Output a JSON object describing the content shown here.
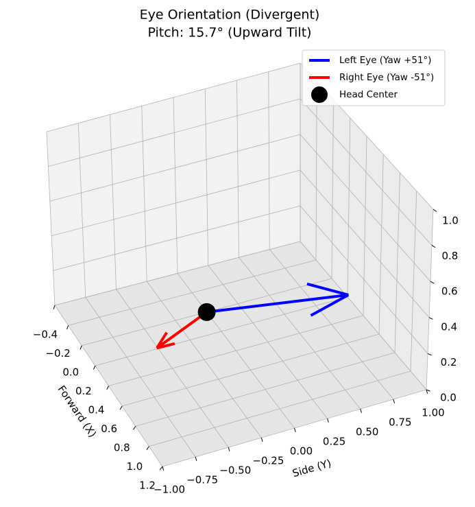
{
  "chart_data": {
    "type": "quiver3d",
    "title": "Eye Orientation (Divergent)",
    "subtitle": "Pitch: 15.7° (Upward Tilt)",
    "xlabel": "Forward (X)",
    "ylabel": "Side (Y)",
    "xlim": [
      -0.4,
      1.2
    ],
    "xticks": [
      {
        "value": -0.4,
        "label": "−0.4"
      },
      {
        "value": -0.2,
        "label": "−0.2"
      },
      {
        "value": 0,
        "label": "0.0"
      },
      0.2,
      0.4,
      0.6,
      0.8,
      {
        "value": 1,
        "label": "1.0"
      },
      1.2
    ],
    "ylim": [
      -1,
      1
    ],
    "yticks": [
      {
        "value": -1,
        "label": "−1.00"
      },
      {
        "value": -0.75,
        "label": "−0.75"
      },
      {
        "value": -0.5,
        "label": "−0.50"
      },
      {
        "value": -0.25,
        "label": "−0.25"
      },
      {
        "value": 0,
        "label": "0.00"
      },
      0.25,
      {
        "value": 0.5,
        "label": "0.50"
      },
      0.75,
      {
        "value": 1,
        "label": "1.00"
      }
    ],
    "zlim": [
      0,
      1
    ],
    "zticks": [
      {
        "value": 0,
        "label": "0.0"
      },
      0.2,
      0.4,
      0.6,
      0.8,
      {
        "value": 1,
        "label": "1.0"
      }
    ],
    "grid": true,
    "legend": "upper right",
    "series": [
      {
        "name": "Left Eye (Yaw +51°)",
        "color": "#0000ff",
        "x": 0,
        "y": 0,
        "z": 0,
        "u": 0.606,
        "v": 0.748,
        "w": 0.271
      },
      {
        "name": "Right Eye (Yaw -51°)",
        "color": "#ff0000",
        "x": 0,
        "y": 0,
        "z": 0,
        "u": 0.606,
        "v": -0.748,
        "w": 0.271
      }
    ],
    "points": {
      "name": "Head Center",
      "color": "#000000",
      "x": [
        0
      ],
      "y": [
        0
      ],
      "z": [
        0
      ]
    }
  }
}
